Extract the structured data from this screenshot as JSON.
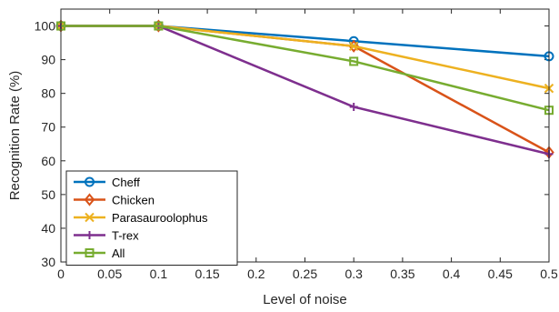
{
  "chart_data": {
    "type": "line",
    "title": "",
    "xlabel": "Level of noise",
    "ylabel": "Recognition Rate (%)",
    "xlim": [
      0,
      0.5
    ],
    "ylim": [
      30,
      105
    ],
    "x_ticks": [
      "0",
      "0.05",
      "0.1",
      "0.15",
      "0.2",
      "0.25",
      "0.3",
      "0.35",
      "0.4",
      "0.45",
      "0.5"
    ],
    "y_ticks": [
      "30",
      "40",
      "50",
      "60",
      "70",
      "80",
      "90",
      "100"
    ],
    "grid": false,
    "legend_position": "bottom-left",
    "x": [
      0,
      0.1,
      0.3,
      0.5
    ],
    "series": [
      {
        "name": "Cheff",
        "values": [
          100,
          100,
          95.5,
          91
        ],
        "color": "#0072BD",
        "marker": "circle"
      },
      {
        "name": "Chicken",
        "values": [
          100,
          100,
          94,
          62.5
        ],
        "color": "#D95319",
        "marker": "diamond"
      },
      {
        "name": "Parasauroolophus",
        "values": [
          100,
          100,
          94,
          81.5
        ],
        "color": "#EDB120",
        "marker": "x"
      },
      {
        "name": "T-rex",
        "values": [
          100,
          100,
          76,
          62
        ],
        "color": "#7E2F8E",
        "marker": "plus"
      },
      {
        "name": "All",
        "values": [
          100,
          100,
          89.5,
          75
        ],
        "color": "#77AC30",
        "marker": "square"
      }
    ]
  }
}
